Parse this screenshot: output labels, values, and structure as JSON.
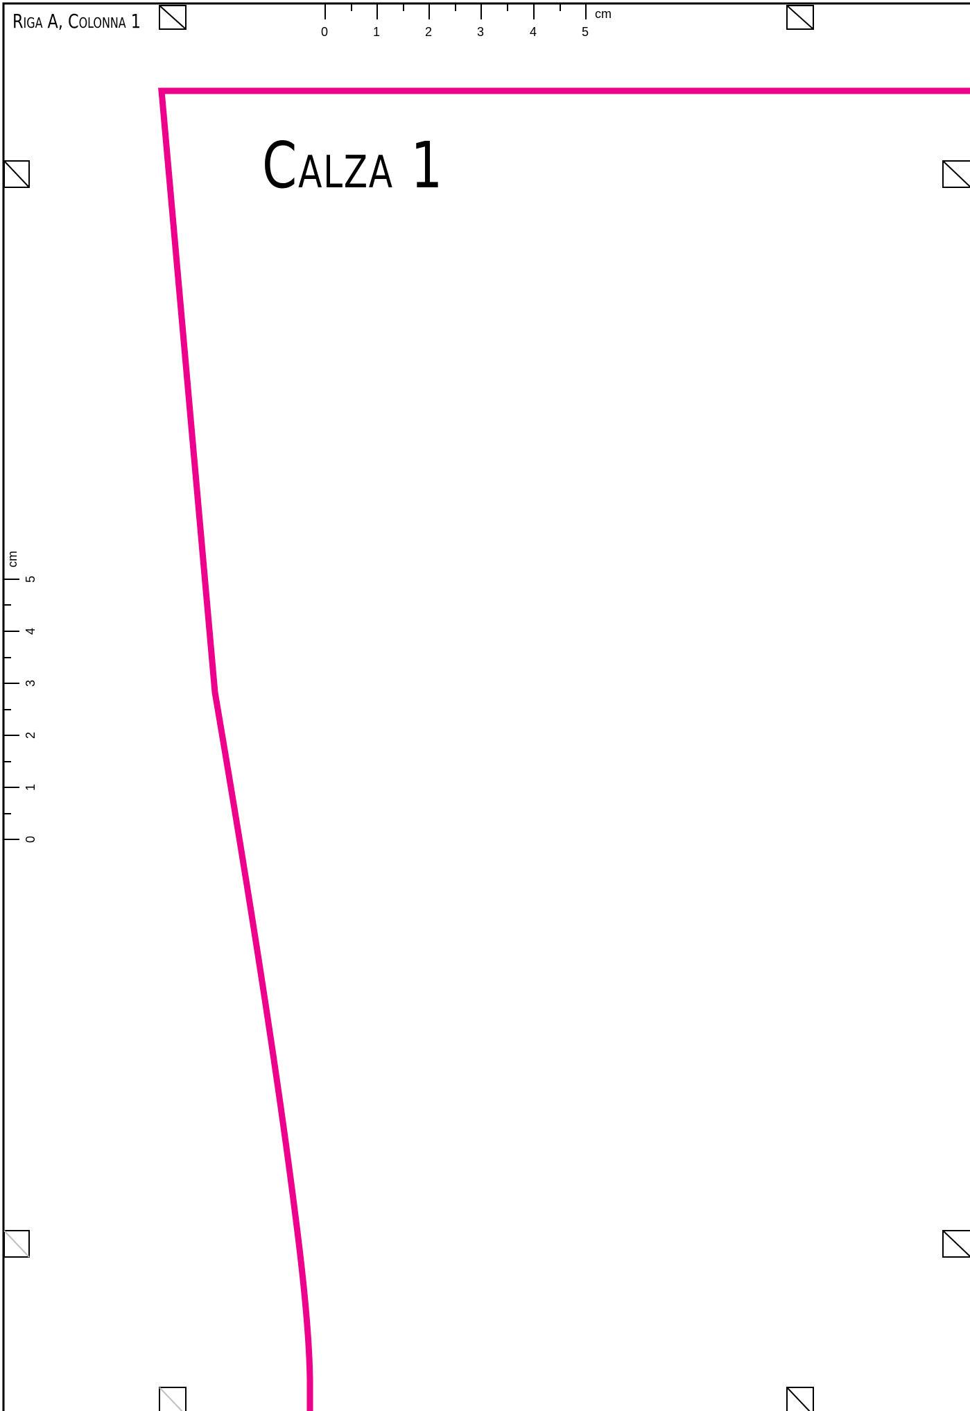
{
  "document": {
    "page_label": "Riga A, Colonna 1",
    "piece_title": "Calza 1",
    "outline_color": "#ec008c",
    "border_color": "#000000"
  },
  "ruler_horizontal": {
    "unit": "cm",
    "labels": [
      "0",
      "1",
      "2",
      "3",
      "4",
      "5"
    ]
  },
  "ruler_vertical": {
    "unit": "cm",
    "labels": [
      "0",
      "1",
      "2",
      "3",
      "4",
      "5"
    ]
  }
}
